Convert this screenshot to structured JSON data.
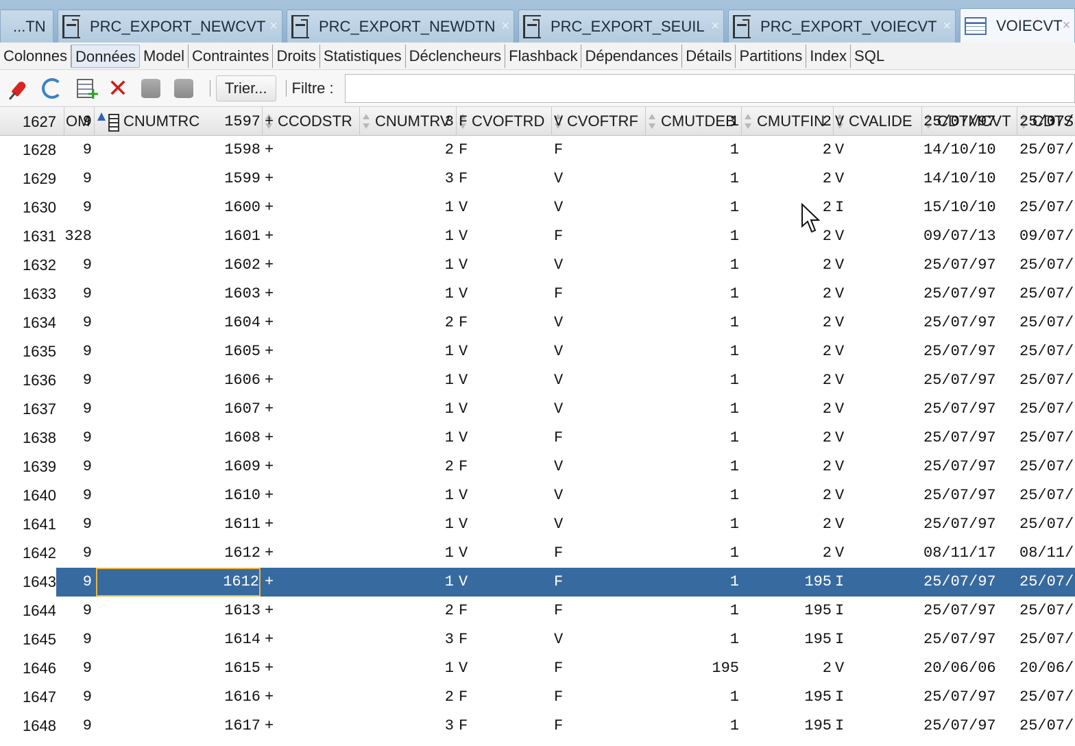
{
  "tabs": [
    {
      "label": "...TN",
      "icon": "none"
    },
    {
      "label": "PRC_EXPORT_NEWCVT",
      "icon": "procedure-icon",
      "close": "×"
    },
    {
      "label": "PRC_EXPORT_NEWDTN",
      "icon": "procedure-icon",
      "close": "×"
    },
    {
      "label": "PRC_EXPORT_SEUIL",
      "icon": "procedure-icon",
      "close": "×"
    },
    {
      "label": "PRC_EXPORT_VOIECVT",
      "icon": "procedure-icon",
      "close": "×"
    },
    {
      "label": "VOIECVT",
      "icon": "table-grid-icon",
      "close": "×",
      "active": true
    }
  ],
  "subtabs": [
    "Colonnes",
    "Données",
    "Model",
    "Contraintes",
    "Droits",
    "Statistiques",
    "Déclencheurs",
    "Flashback",
    "Dépendances",
    "Détails",
    "Partitions",
    "Index",
    "SQL"
  ],
  "active_subtab": "Données",
  "toolbar": {
    "icons": [
      "pin-icon",
      "refresh-icon",
      "insert-row-icon",
      "delete-row-icon",
      "commit-icon",
      "rollback-icon"
    ],
    "sort_label": "Trier...",
    "filter_label": "Filtre :",
    "filter_value": ""
  },
  "columns": [
    "OM",
    "CNUMTRC",
    "CCODSTR",
    "CNUMTRV",
    "CVOFTRD",
    "CVOFTRF",
    "CMUTDEB",
    "CMUTFIN",
    "CVALIDE",
    "CDTMCVT",
    "CDTS"
  ],
  "rows": [
    {
      "n": "1627",
      "om": "9",
      "cnumtrc": "1597",
      "ccodstr": "+",
      "cnumtrv": "3",
      "cvoftrd": "F",
      "cvoftrf": "V",
      "cmutdeb": "1",
      "cmutfin": "2",
      "cvalide": "V",
      "cdtmcvt": "25/07/97",
      "cdts": "25/07/"
    },
    {
      "n": "1628",
      "om": "9",
      "cnumtrc": "1598",
      "ccodstr": "+",
      "cnumtrv": "2",
      "cvoftrd": "F",
      "cvoftrf": "F",
      "cmutdeb": "1",
      "cmutfin": "2",
      "cvalide": "V",
      "cdtmcvt": "14/10/10",
      "cdts": "25/07/"
    },
    {
      "n": "1629",
      "om": "9",
      "cnumtrc": "1599",
      "ccodstr": "+",
      "cnumtrv": "3",
      "cvoftrd": "F",
      "cvoftrf": "V",
      "cmutdeb": "1",
      "cmutfin": "2",
      "cvalide": "V",
      "cdtmcvt": "14/10/10",
      "cdts": "25/07/"
    },
    {
      "n": "1630",
      "om": "9",
      "cnumtrc": "1600",
      "ccodstr": "+",
      "cnumtrv": "1",
      "cvoftrd": "V",
      "cvoftrf": "V",
      "cmutdeb": "1",
      "cmutfin": "2",
      "cvalide": "I",
      "cdtmcvt": "15/10/10",
      "cdts": "25/07/"
    },
    {
      "n": "1631",
      "om": "328",
      "cnumtrc": "1601",
      "ccodstr": "+",
      "cnumtrv": "1",
      "cvoftrd": "V",
      "cvoftrf": "F",
      "cmutdeb": "1",
      "cmutfin": "2",
      "cvalide": "V",
      "cdtmcvt": "09/07/13",
      "cdts": "09/07/"
    },
    {
      "n": "1632",
      "om": "9",
      "cnumtrc": "1602",
      "ccodstr": "+",
      "cnumtrv": "1",
      "cvoftrd": "V",
      "cvoftrf": "V",
      "cmutdeb": "1",
      "cmutfin": "2",
      "cvalide": "V",
      "cdtmcvt": "25/07/97",
      "cdts": "25/07/"
    },
    {
      "n": "1633",
      "om": "9",
      "cnumtrc": "1603",
      "ccodstr": "+",
      "cnumtrv": "1",
      "cvoftrd": "V",
      "cvoftrf": "F",
      "cmutdeb": "1",
      "cmutfin": "2",
      "cvalide": "V",
      "cdtmcvt": "25/07/97",
      "cdts": "25/07/"
    },
    {
      "n": "1634",
      "om": "9",
      "cnumtrc": "1604",
      "ccodstr": "+",
      "cnumtrv": "2",
      "cvoftrd": "F",
      "cvoftrf": "V",
      "cmutdeb": "1",
      "cmutfin": "2",
      "cvalide": "V",
      "cdtmcvt": "25/07/97",
      "cdts": "25/07/"
    },
    {
      "n": "1635",
      "om": "9",
      "cnumtrc": "1605",
      "ccodstr": "+",
      "cnumtrv": "1",
      "cvoftrd": "V",
      "cvoftrf": "V",
      "cmutdeb": "1",
      "cmutfin": "2",
      "cvalide": "V",
      "cdtmcvt": "25/07/97",
      "cdts": "25/07/"
    },
    {
      "n": "1636",
      "om": "9",
      "cnumtrc": "1606",
      "ccodstr": "+",
      "cnumtrv": "1",
      "cvoftrd": "V",
      "cvoftrf": "V",
      "cmutdeb": "1",
      "cmutfin": "2",
      "cvalide": "V",
      "cdtmcvt": "25/07/97",
      "cdts": "25/07/"
    },
    {
      "n": "1637",
      "om": "9",
      "cnumtrc": "1607",
      "ccodstr": "+",
      "cnumtrv": "1",
      "cvoftrd": "V",
      "cvoftrf": "V",
      "cmutdeb": "1",
      "cmutfin": "2",
      "cvalide": "V",
      "cdtmcvt": "25/07/97",
      "cdts": "25/07/"
    },
    {
      "n": "1638",
      "om": "9",
      "cnumtrc": "1608",
      "ccodstr": "+",
      "cnumtrv": "1",
      "cvoftrd": "V",
      "cvoftrf": "F",
      "cmutdeb": "1",
      "cmutfin": "2",
      "cvalide": "V",
      "cdtmcvt": "25/07/97",
      "cdts": "25/07/"
    },
    {
      "n": "1639",
      "om": "9",
      "cnumtrc": "1609",
      "ccodstr": "+",
      "cnumtrv": "2",
      "cvoftrd": "F",
      "cvoftrf": "V",
      "cmutdeb": "1",
      "cmutfin": "2",
      "cvalide": "V",
      "cdtmcvt": "25/07/97",
      "cdts": "25/07/"
    },
    {
      "n": "1640",
      "om": "9",
      "cnumtrc": "1610",
      "ccodstr": "+",
      "cnumtrv": "1",
      "cvoftrd": "V",
      "cvoftrf": "V",
      "cmutdeb": "1",
      "cmutfin": "2",
      "cvalide": "V",
      "cdtmcvt": "25/07/97",
      "cdts": "25/07/"
    },
    {
      "n": "1641",
      "om": "9",
      "cnumtrc": "1611",
      "ccodstr": "+",
      "cnumtrv": "1",
      "cvoftrd": "V",
      "cvoftrf": "V",
      "cmutdeb": "1",
      "cmutfin": "2",
      "cvalide": "V",
      "cdtmcvt": "25/07/97",
      "cdts": "25/07/"
    },
    {
      "n": "1642",
      "om": "9",
      "cnumtrc": "1612",
      "ccodstr": "+",
      "cnumtrv": "1",
      "cvoftrd": "V",
      "cvoftrf": "F",
      "cmutdeb": "1",
      "cmutfin": "2",
      "cvalide": "V",
      "cdtmcvt": "08/11/17",
      "cdts": "08/11/"
    },
    {
      "n": "1643",
      "om": "9",
      "cnumtrc": "1612",
      "ccodstr": "+",
      "cnumtrv": "1",
      "cvoftrd": "V",
      "cvoftrf": "F",
      "cmutdeb": "1",
      "cmutfin": "195",
      "cvalide": "I",
      "cdtmcvt": "25/07/97",
      "cdts": "25/07/",
      "selected": true
    },
    {
      "n": "1644",
      "om": "9",
      "cnumtrc": "1613",
      "ccodstr": "+",
      "cnumtrv": "2",
      "cvoftrd": "F",
      "cvoftrf": "F",
      "cmutdeb": "1",
      "cmutfin": "195",
      "cvalide": "I",
      "cdtmcvt": "25/07/97",
      "cdts": "25/07/"
    },
    {
      "n": "1645",
      "om": "9",
      "cnumtrc": "1614",
      "ccodstr": "+",
      "cnumtrv": "3",
      "cvoftrd": "F",
      "cvoftrf": "V",
      "cmutdeb": "1",
      "cmutfin": "195",
      "cvalide": "I",
      "cdtmcvt": "25/07/97",
      "cdts": "25/07/"
    },
    {
      "n": "1646",
      "om": "9",
      "cnumtrc": "1615",
      "ccodstr": "+",
      "cnumtrv": "1",
      "cvoftrd": "V",
      "cvoftrf": "F",
      "cmutdeb": "195",
      "cmutfin": "2",
      "cvalide": "V",
      "cdtmcvt": "20/06/06",
      "cdts": "20/06/"
    },
    {
      "n": "1647",
      "om": "9",
      "cnumtrc": "1616",
      "ccodstr": "+",
      "cnumtrv": "2",
      "cvoftrd": "F",
      "cvoftrf": "F",
      "cmutdeb": "1",
      "cmutfin": "195",
      "cvalide": "I",
      "cdtmcvt": "25/07/97",
      "cdts": "25/07/"
    },
    {
      "n": "1648",
      "om": "9",
      "cnumtrc": "1617",
      "ccodstr": "+",
      "cnumtrv": "3",
      "cvoftrd": "F",
      "cvoftrf": "F",
      "cmutdeb": "1",
      "cmutfin": "195",
      "cvalide": "I",
      "cdtmcvt": "25/07/97",
      "cdts": "25/07/"
    }
  ],
  "colors": {
    "selection": "#376a9f",
    "focus_border": "#f0b63a",
    "tabbar": "#9dbbd6"
  }
}
